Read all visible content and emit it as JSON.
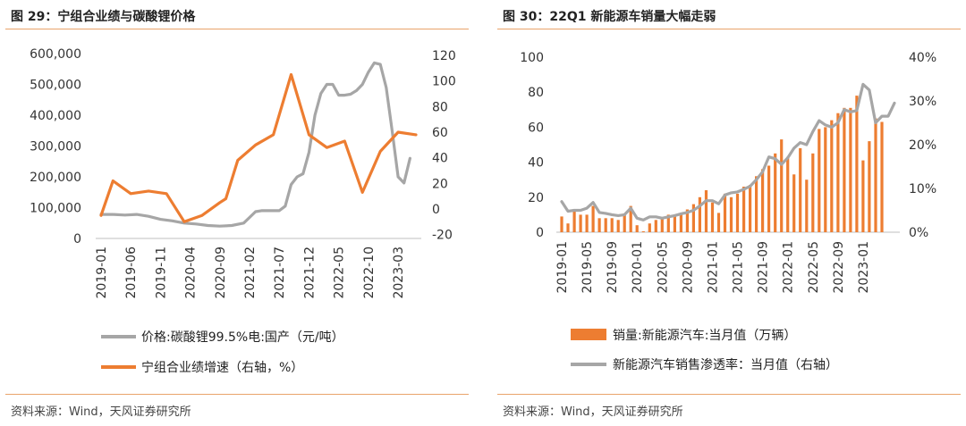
{
  "left": {
    "title": "图 29：宁组合业绩与碳酸锂价格",
    "source": "资料来源：Wind，天风证券研究所"
  },
  "right": {
    "title": "图 30：22Q1 新能源车销量大幅走弱",
    "source": "资料来源：Wind，天风证券研究所"
  },
  "colors": {
    "gray": "#a6a6a6",
    "orange": "#ed7d31",
    "rule": "#e9a36b"
  },
  "chart_data": [
    {
      "type": "line",
      "x_dates": [
        "2019-01",
        "2019-06",
        "2019-11",
        "2020-04",
        "2020-09",
        "2021-02",
        "2021-07",
        "2021-12",
        "2022-05",
        "2022-10",
        "2023-03"
      ],
      "x_tick_labels": [
        "2019-01",
        "2019-06",
        "2019-11",
        "2020-04",
        "2020-09",
        "2021-02",
        "2021-07",
        "2021-12",
        "2022-05",
        "2022-10",
        "2023-03"
      ],
      "y_left": {
        "ticks": [
          "600,000",
          "500,000",
          "400,000",
          "300,000",
          "200,000",
          "100,000",
          "0"
        ],
        "range": [
          0,
          600000
        ]
      },
      "y_right": {
        "ticks": [
          "120",
          "100",
          "80",
          "60",
          "40",
          "20",
          "0",
          "-20"
        ],
        "range": [
          -20,
          120
        ]
      },
      "series": [
        {
          "name": "价格:碳酸锂99.5%电:国产（元/吨）",
          "axis": "left",
          "color": "#a6a6a6",
          "points": [
            [
              "2019-01",
              78000
            ],
            [
              "2019-03",
              78000
            ],
            [
              "2019-05",
              76000
            ],
            [
              "2019-07",
              78000
            ],
            [
              "2019-09",
              72000
            ],
            [
              "2019-11",
              62000
            ],
            [
              "2020-01",
              57000
            ],
            [
              "2020-03",
              50000
            ],
            [
              "2020-05",
              47000
            ],
            [
              "2020-07",
              42000
            ],
            [
              "2020-09",
              40000
            ],
            [
              "2020-11",
              42000
            ],
            [
              "2021-01",
              50000
            ],
            [
              "2021-02",
              68000
            ],
            [
              "2021-03",
              87000
            ],
            [
              "2021-04",
              90000
            ],
            [
              "2021-06",
              90000
            ],
            [
              "2021-07",
              90000
            ],
            [
              "2021-08",
              105000
            ],
            [
              "2021-09",
              175000
            ],
            [
              "2021-10",
              200000
            ],
            [
              "2021-11",
              210000
            ],
            [
              "2021-12",
              280000
            ],
            [
              "2022-01",
              400000
            ],
            [
              "2022-02",
              470000
            ],
            [
              "2022-03",
              500000
            ],
            [
              "2022-04",
              500000
            ],
            [
              "2022-05",
              465000
            ],
            [
              "2022-06",
              465000
            ],
            [
              "2022-07",
              468000
            ],
            [
              "2022-08",
              480000
            ],
            [
              "2022-09",
              500000
            ],
            [
              "2022-10",
              540000
            ],
            [
              "2022-11",
              570000
            ],
            [
              "2022-12",
              565000
            ],
            [
              "2023-01",
              490000
            ],
            [
              "2023-02",
              350000
            ],
            [
              "2023-03",
              200000
            ],
            [
              "2023-04",
              180000
            ],
            [
              "2023-05",
              260000
            ]
          ]
        },
        {
          "name": "宁组合业绩增速（右轴，%）",
          "axis": "right",
          "color": "#ed7d31",
          "points": [
            [
              "2019-01",
              -5
            ],
            [
              "2019-03",
              22
            ],
            [
              "2019-06",
              12
            ],
            [
              "2019-09",
              14
            ],
            [
              "2019-12",
              12
            ],
            [
              "2020-03",
              -10
            ],
            [
              "2020-06",
              -5
            ],
            [
              "2020-09",
              5
            ],
            [
              "2020-10",
              8
            ],
            [
              "2020-12",
              38
            ],
            [
              "2021-03",
              50
            ],
            [
              "2021-06",
              58
            ],
            [
              "2021-09",
              105
            ],
            [
              "2021-12",
              58
            ],
            [
              "2022-03",
              48
            ],
            [
              "2022-06",
              53
            ],
            [
              "2022-09",
              13
            ],
            [
              "2022-12",
              45
            ],
            [
              "2023-03",
              60
            ],
            [
              "2023-06",
              58
            ]
          ]
        }
      ]
    },
    {
      "type": "bar+line",
      "x_dates": [
        "2019-01",
        "2019-05",
        "2019-09",
        "2020-01",
        "2020-05",
        "2020-09",
        "2021-01",
        "2021-05",
        "2021-09",
        "2022-01",
        "2022-05",
        "2022-09",
        "2023-01"
      ],
      "x_tick_labels": [
        "2019-01",
        "2019-05",
        "2019-09",
        "2020-01",
        "2020-05",
        "2020-09",
        "2021-01",
        "2021-05",
        "2021-09",
        "2022-01",
        "2022-05",
        "2022-09",
        "2023-01"
      ],
      "y_left": {
        "ticks": [
          "100",
          "80",
          "60",
          "40",
          "20",
          "0"
        ],
        "range": [
          0,
          100
        ]
      },
      "y_right": {
        "ticks": [
          "40%",
          "30%",
          "20%",
          "10%",
          "0%"
        ],
        "range": [
          0,
          40
        ]
      },
      "series": [
        {
          "name": "销量:新能源汽车:当月值（万辆）",
          "type": "bar",
          "axis": "left",
          "color": "#ed7d31",
          "x_start": "2019-01",
          "values": [
            9,
            5,
            12,
            10,
            10,
            15,
            8,
            8,
            8,
            7,
            10,
            15,
            4,
            0.5,
            5,
            7,
            8,
            10,
            10,
            11,
            13,
            16,
            20,
            24,
            17,
            11,
            22,
            20,
            22,
            26,
            27,
            32,
            36,
            38,
            45,
            53,
            43,
            33,
            48,
            30,
            45,
            59,
            60,
            64,
            68,
            71,
            71,
            78,
            41,
            52,
            65,
            63
          ]
        },
        {
          "name": "新能源汽车销售渗透率：当月值（右轴）",
          "type": "line",
          "axis": "right",
          "color": "#a6a6a6",
          "x_start": "2019-01",
          "values": [
            7,
            4.8,
            5,
            5,
            5.5,
            6.8,
            4.5,
            4.3,
            4,
            3.8,
            4,
            5.5,
            3.2,
            2.8,
            3.5,
            3.5,
            3.2,
            3.5,
            3.8,
            4.2,
            4.5,
            5,
            6,
            7.2,
            7.2,
            6.5,
            8.5,
            9,
            9.2,
            9.8,
            10.5,
            12,
            13.8,
            17.2,
            16.8,
            15.5,
            17,
            19.2,
            20.5,
            20,
            23,
            25.5,
            24.5,
            24,
            25,
            28,
            27.5,
            27.8,
            33.8,
            32.5,
            25,
            26.5,
            26.5,
            29.5
          ]
        }
      ]
    }
  ]
}
